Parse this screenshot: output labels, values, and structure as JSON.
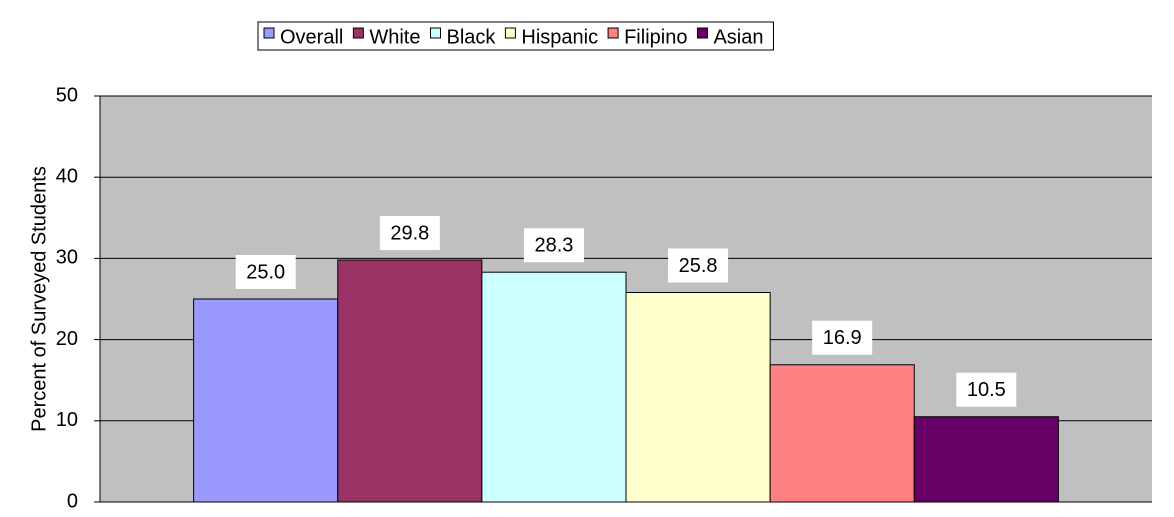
{
  "chart_data": {
    "type": "bar",
    "y_label": "Percent of Surveyed Students",
    "categories": [
      null
    ],
    "series": [
      {
        "name": "Overall",
        "color": "#9999ff",
        "values": [
          25.0
        ],
        "value_labels": [
          "25.0"
        ]
      },
      {
        "name": "White",
        "color": "#993366",
        "values": [
          29.8
        ]
      },
      {
        "name": "Black",
        "color": "#ccffff",
        "values": [
          28.3
        ]
      },
      {
        "name": "Hispanic",
        "color": "#ffffcc",
        "values": [
          25.8
        ]
      },
      {
        "name": "Filipino",
        "color": "#ff8080",
        "values": [
          16.9
        ]
      },
      {
        "name": "Asian",
        "color": "#660066",
        "values": [
          10.5
        ]
      }
    ],
    "ylim": [
      0,
      50
    ],
    "yticks": [
      0,
      10,
      20,
      30,
      40,
      50
    ],
    "grid": true,
    "legend": "top"
  }
}
